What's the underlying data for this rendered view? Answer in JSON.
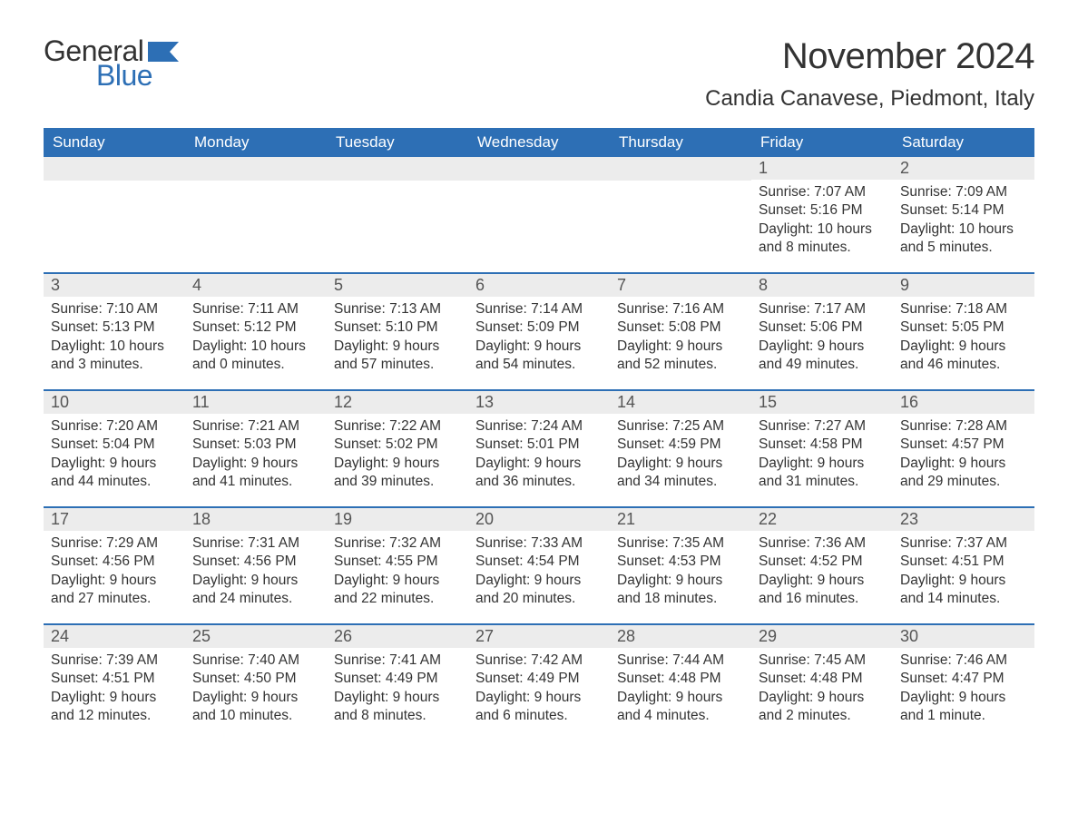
{
  "brand": {
    "word1": "General",
    "word2": "Blue",
    "color_primary": "#2d6fb5"
  },
  "title": "November 2024",
  "location": "Candia Canavese, Piedmont, Italy",
  "colors": {
    "header_bg": "#2d6fb5",
    "header_text": "#ffffff",
    "daynum_bg": "#ececec",
    "text": "#333333",
    "row_separator": "#2d6fb5",
    "page_bg": "#ffffff"
  },
  "weekdays": [
    "Sunday",
    "Monday",
    "Tuesday",
    "Wednesday",
    "Thursday",
    "Friday",
    "Saturday"
  ],
  "weeks": [
    [
      {
        "empty": true
      },
      {
        "empty": true
      },
      {
        "empty": true
      },
      {
        "empty": true
      },
      {
        "empty": true
      },
      {
        "n": "1",
        "sunrise": "Sunrise: 7:07 AM",
        "sunset": "Sunset: 5:16 PM",
        "daylight": "Daylight: 10 hours and 8 minutes."
      },
      {
        "n": "2",
        "sunrise": "Sunrise: 7:09 AM",
        "sunset": "Sunset: 5:14 PM",
        "daylight": "Daylight: 10 hours and 5 minutes."
      }
    ],
    [
      {
        "n": "3",
        "sunrise": "Sunrise: 7:10 AM",
        "sunset": "Sunset: 5:13 PM",
        "daylight": "Daylight: 10 hours and 3 minutes."
      },
      {
        "n": "4",
        "sunrise": "Sunrise: 7:11 AM",
        "sunset": "Sunset: 5:12 PM",
        "daylight": "Daylight: 10 hours and 0 minutes."
      },
      {
        "n": "5",
        "sunrise": "Sunrise: 7:13 AM",
        "sunset": "Sunset: 5:10 PM",
        "daylight": "Daylight: 9 hours and 57 minutes."
      },
      {
        "n": "6",
        "sunrise": "Sunrise: 7:14 AM",
        "sunset": "Sunset: 5:09 PM",
        "daylight": "Daylight: 9 hours and 54 minutes."
      },
      {
        "n": "7",
        "sunrise": "Sunrise: 7:16 AM",
        "sunset": "Sunset: 5:08 PM",
        "daylight": "Daylight: 9 hours and 52 minutes."
      },
      {
        "n": "8",
        "sunrise": "Sunrise: 7:17 AM",
        "sunset": "Sunset: 5:06 PM",
        "daylight": "Daylight: 9 hours and 49 minutes."
      },
      {
        "n": "9",
        "sunrise": "Sunrise: 7:18 AM",
        "sunset": "Sunset: 5:05 PM",
        "daylight": "Daylight: 9 hours and 46 minutes."
      }
    ],
    [
      {
        "n": "10",
        "sunrise": "Sunrise: 7:20 AM",
        "sunset": "Sunset: 5:04 PM",
        "daylight": "Daylight: 9 hours and 44 minutes."
      },
      {
        "n": "11",
        "sunrise": "Sunrise: 7:21 AM",
        "sunset": "Sunset: 5:03 PM",
        "daylight": "Daylight: 9 hours and 41 minutes."
      },
      {
        "n": "12",
        "sunrise": "Sunrise: 7:22 AM",
        "sunset": "Sunset: 5:02 PM",
        "daylight": "Daylight: 9 hours and 39 minutes."
      },
      {
        "n": "13",
        "sunrise": "Sunrise: 7:24 AM",
        "sunset": "Sunset: 5:01 PM",
        "daylight": "Daylight: 9 hours and 36 minutes."
      },
      {
        "n": "14",
        "sunrise": "Sunrise: 7:25 AM",
        "sunset": "Sunset: 4:59 PM",
        "daylight": "Daylight: 9 hours and 34 minutes."
      },
      {
        "n": "15",
        "sunrise": "Sunrise: 7:27 AM",
        "sunset": "Sunset: 4:58 PM",
        "daylight": "Daylight: 9 hours and 31 minutes."
      },
      {
        "n": "16",
        "sunrise": "Sunrise: 7:28 AM",
        "sunset": "Sunset: 4:57 PM",
        "daylight": "Daylight: 9 hours and 29 minutes."
      }
    ],
    [
      {
        "n": "17",
        "sunrise": "Sunrise: 7:29 AM",
        "sunset": "Sunset: 4:56 PM",
        "daylight": "Daylight: 9 hours and 27 minutes."
      },
      {
        "n": "18",
        "sunrise": "Sunrise: 7:31 AM",
        "sunset": "Sunset: 4:56 PM",
        "daylight": "Daylight: 9 hours and 24 minutes."
      },
      {
        "n": "19",
        "sunrise": "Sunrise: 7:32 AM",
        "sunset": "Sunset: 4:55 PM",
        "daylight": "Daylight: 9 hours and 22 minutes."
      },
      {
        "n": "20",
        "sunrise": "Sunrise: 7:33 AM",
        "sunset": "Sunset: 4:54 PM",
        "daylight": "Daylight: 9 hours and 20 minutes."
      },
      {
        "n": "21",
        "sunrise": "Sunrise: 7:35 AM",
        "sunset": "Sunset: 4:53 PM",
        "daylight": "Daylight: 9 hours and 18 minutes."
      },
      {
        "n": "22",
        "sunrise": "Sunrise: 7:36 AM",
        "sunset": "Sunset: 4:52 PM",
        "daylight": "Daylight: 9 hours and 16 minutes."
      },
      {
        "n": "23",
        "sunrise": "Sunrise: 7:37 AM",
        "sunset": "Sunset: 4:51 PM",
        "daylight": "Daylight: 9 hours and 14 minutes."
      }
    ],
    [
      {
        "n": "24",
        "sunrise": "Sunrise: 7:39 AM",
        "sunset": "Sunset: 4:51 PM",
        "daylight": "Daylight: 9 hours and 12 minutes."
      },
      {
        "n": "25",
        "sunrise": "Sunrise: 7:40 AM",
        "sunset": "Sunset: 4:50 PM",
        "daylight": "Daylight: 9 hours and 10 minutes."
      },
      {
        "n": "26",
        "sunrise": "Sunrise: 7:41 AM",
        "sunset": "Sunset: 4:49 PM",
        "daylight": "Daylight: 9 hours and 8 minutes."
      },
      {
        "n": "27",
        "sunrise": "Sunrise: 7:42 AM",
        "sunset": "Sunset: 4:49 PM",
        "daylight": "Daylight: 9 hours and 6 minutes."
      },
      {
        "n": "28",
        "sunrise": "Sunrise: 7:44 AM",
        "sunset": "Sunset: 4:48 PM",
        "daylight": "Daylight: 9 hours and 4 minutes."
      },
      {
        "n": "29",
        "sunrise": "Sunrise: 7:45 AM",
        "sunset": "Sunset: 4:48 PM",
        "daylight": "Daylight: 9 hours and 2 minutes."
      },
      {
        "n": "30",
        "sunrise": "Sunrise: 7:46 AM",
        "sunset": "Sunset: 4:47 PM",
        "daylight": "Daylight: 9 hours and 1 minute."
      }
    ]
  ]
}
